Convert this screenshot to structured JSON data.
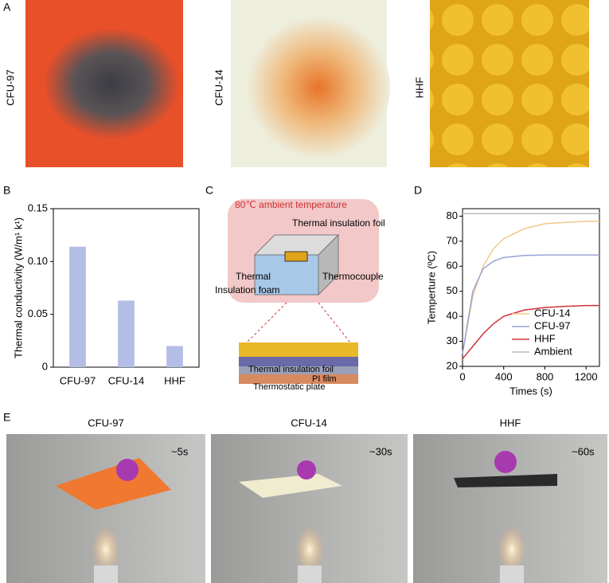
{
  "panel_labels": [
    "A",
    "B",
    "C",
    "D",
    "E"
  ],
  "photos_a": [
    "CFU-97",
    "CFU-14",
    "HHF"
  ],
  "diagram": {
    "ambient": "80℃ ambient temperature",
    "foil": "Thermal insulation foil",
    "thermocouple": "Thermocouple",
    "thermal": "Thermal",
    "foam": "Insulation foam",
    "layer_foil": "Thermal insulation foil",
    "pi_film": "PI film",
    "plate": "Thermostatic plate"
  },
  "photos_e": [
    {
      "title": "CFU-97",
      "time": "~5s"
    },
    {
      "title": "CFU-14",
      "time": "~30s"
    },
    {
      "title": "HHF",
      "time": "~60s"
    }
  ],
  "chart_data": [
    {
      "type": "bar",
      "y_label": "Thermal conductivity (W/m¹ k¹)",
      "categories": [
        "CFU-97",
        "CFU-14",
        "HHF"
      ],
      "values": [
        0.114,
        0.063,
        0.02
      ],
      "color": "#b4bde6",
      "ylim": [
        0,
        0.15
      ],
      "yticks": [
        0,
        0.05,
        {
          "value": 0.1,
          "label": "0.10"
        },
        0.15
      ]
    },
    {
      "type": "line",
      "x_label": "Times (s)",
      "y_label": "Temperture (ºC)",
      "x": [
        0,
        100,
        200,
        300,
        400,
        600,
        800,
        1000,
        1200,
        1330
      ],
      "series": [
        {
          "name": "CFU-14",
          "color": "#f3c98b",
          "values": [
            25,
            48,
            60,
            67,
            71,
            75,
            77,
            77.5,
            78,
            78
          ]
        },
        {
          "name": "CFU-97",
          "color": "#99a3d6",
          "values": [
            25,
            50,
            59,
            62,
            63.5,
            64.3,
            64.5,
            64.5,
            64.5,
            64.5
          ]
        },
        {
          "name": "HHF",
          "color": "#d0323a",
          "values": [
            23,
            28,
            33,
            37,
            40,
            42.5,
            43.5,
            44,
            44.3,
            44.3
          ]
        },
        {
          "name": "Ambient",
          "color": "#bbbbbb",
          "values": [
            81,
            81,
            81,
            81,
            81,
            81,
            81,
            81,
            81,
            81
          ]
        }
      ],
      "xlim": [
        0,
        1330
      ],
      "xticks": [
        0,
        400,
        800,
        1200
      ],
      "ylim": [
        20,
        83
      ],
      "yticks": [
        20,
        30,
        40,
        50,
        60,
        70,
        80
      ],
      "legend": "lower right"
    }
  ]
}
